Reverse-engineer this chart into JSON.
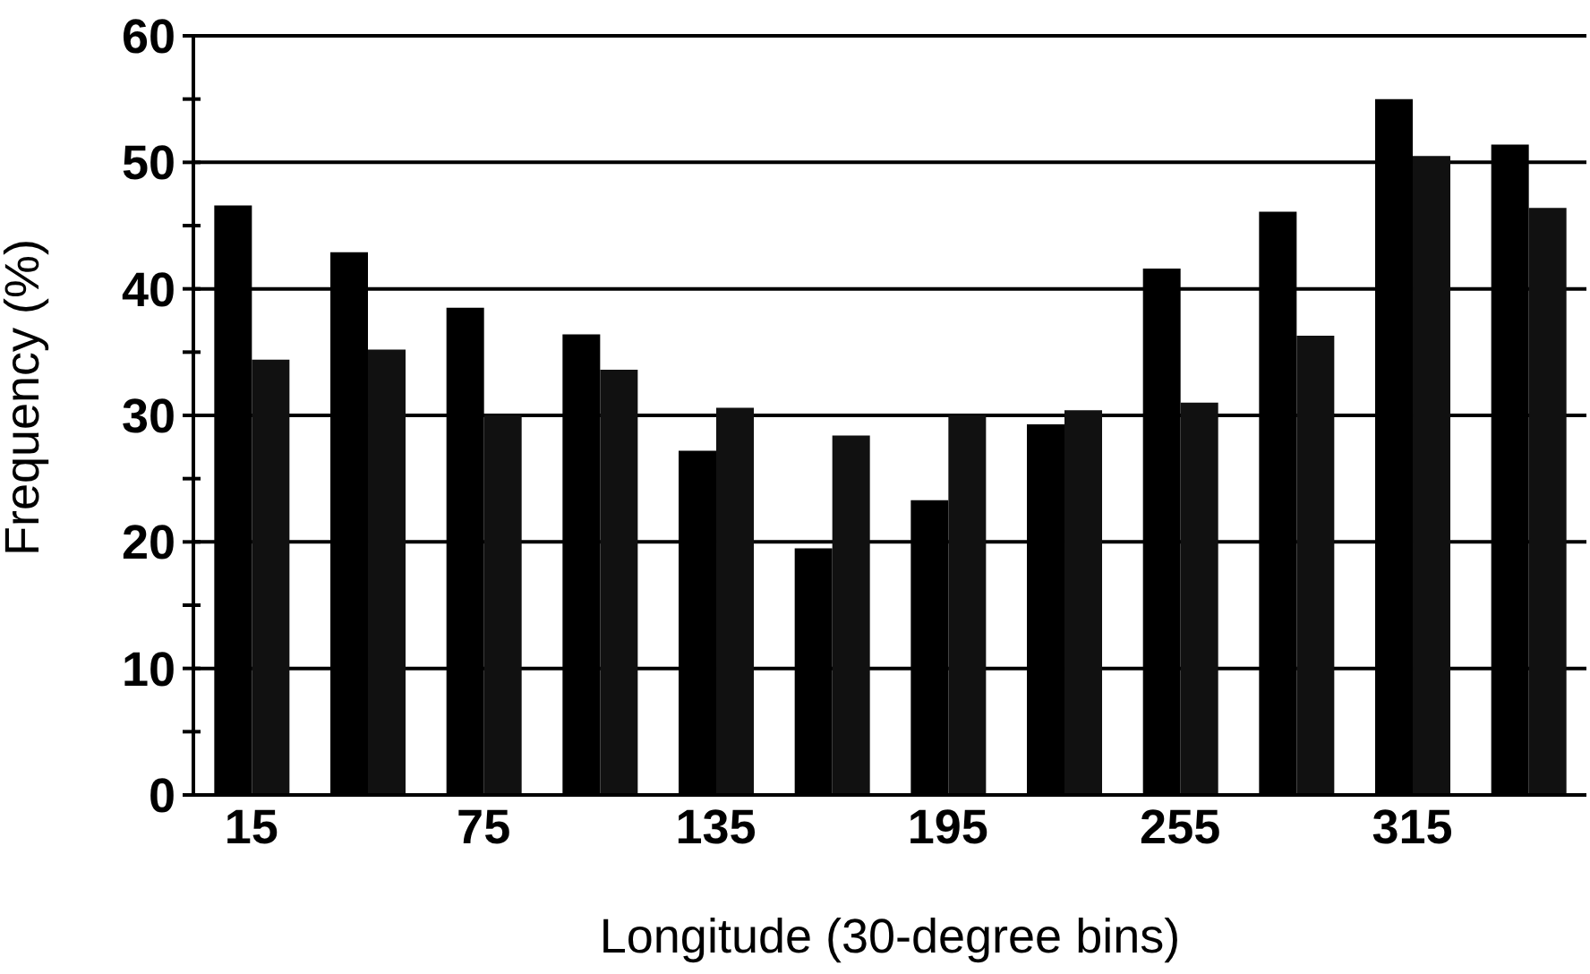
{
  "chart_data": {
    "type": "bar",
    "xlabel": "Longitude (30-degree bins)",
    "ylabel": "Frequency (%)",
    "categories": [
      "15",
      null,
      "75",
      null,
      "135",
      null,
      "195",
      null,
      "255",
      null,
      "315",
      null
    ],
    "series": [
      {
        "color": "#000000",
        "values": [
          46.6,
          42.9,
          38.5,
          36.4,
          27.2,
          19.5,
          23.3,
          29.3,
          41.6,
          46.1,
          55,
          51.4
        ]
      },
      {
        "color": "#111111",
        "values": [
          34.4,
          35.2,
          30,
          33.6,
          30.6,
          28.4,
          30,
          30.4,
          31,
          36.3,
          50.5,
          46.4
        ]
      }
    ],
    "ylim": [
      0,
      60
    ],
    "yticks": [
      0,
      {
        "value": 5,
        "label": null
      },
      10,
      {
        "value": 15,
        "label": null
      },
      20,
      {
        "value": 25,
        "label": null
      },
      30,
      {
        "value": 35,
        "label": null
      },
      40,
      {
        "value": 45,
        "label": null
      },
      50,
      {
        "value": 55,
        "label": null
      },
      60
    ],
    "grid": "y",
    "legend": false
  }
}
